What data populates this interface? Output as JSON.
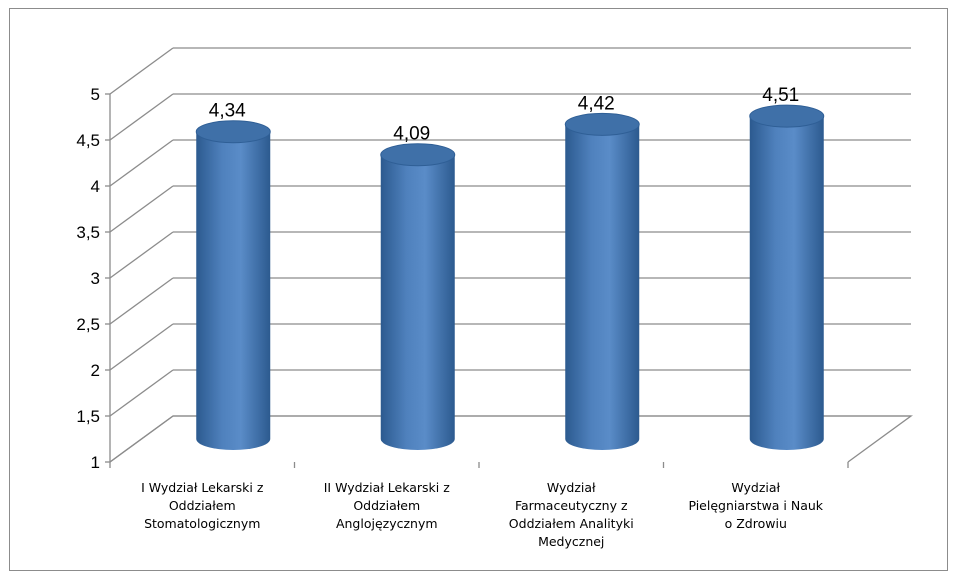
{
  "chart_data": {
    "type": "bar",
    "style": "3d-cylinder",
    "categories": [
      "I Wydział Lekarski z\nOddziałem\nStomatologicznym",
      "II Wydział Lekarski z\nOddziałem\nAnglojęzycznym",
      "Wydział\nFarmaceutyczny z\nOddziałem Analityki\nMedycznej",
      "Wydział\nPielęgniarstwa i Nauk\no Zdrowiu"
    ],
    "values": [
      4.34,
      4.09,
      4.42,
      4.51
    ],
    "value_labels": [
      "4,34",
      "4,09",
      "4,42",
      "4,51"
    ],
    "yticks": [
      "1",
      "1,5",
      "2",
      "2,5",
      "3",
      "3,5",
      "4",
      "4,5",
      "5"
    ],
    "ylim": [
      1,
      5
    ],
    "grid": true,
    "legend": "none",
    "colors": {
      "bar": "#4f81bd",
      "bar_dark": "#2c5a8f",
      "bar_top": "#3f70a8",
      "grid": "#8c8c8c"
    }
  }
}
